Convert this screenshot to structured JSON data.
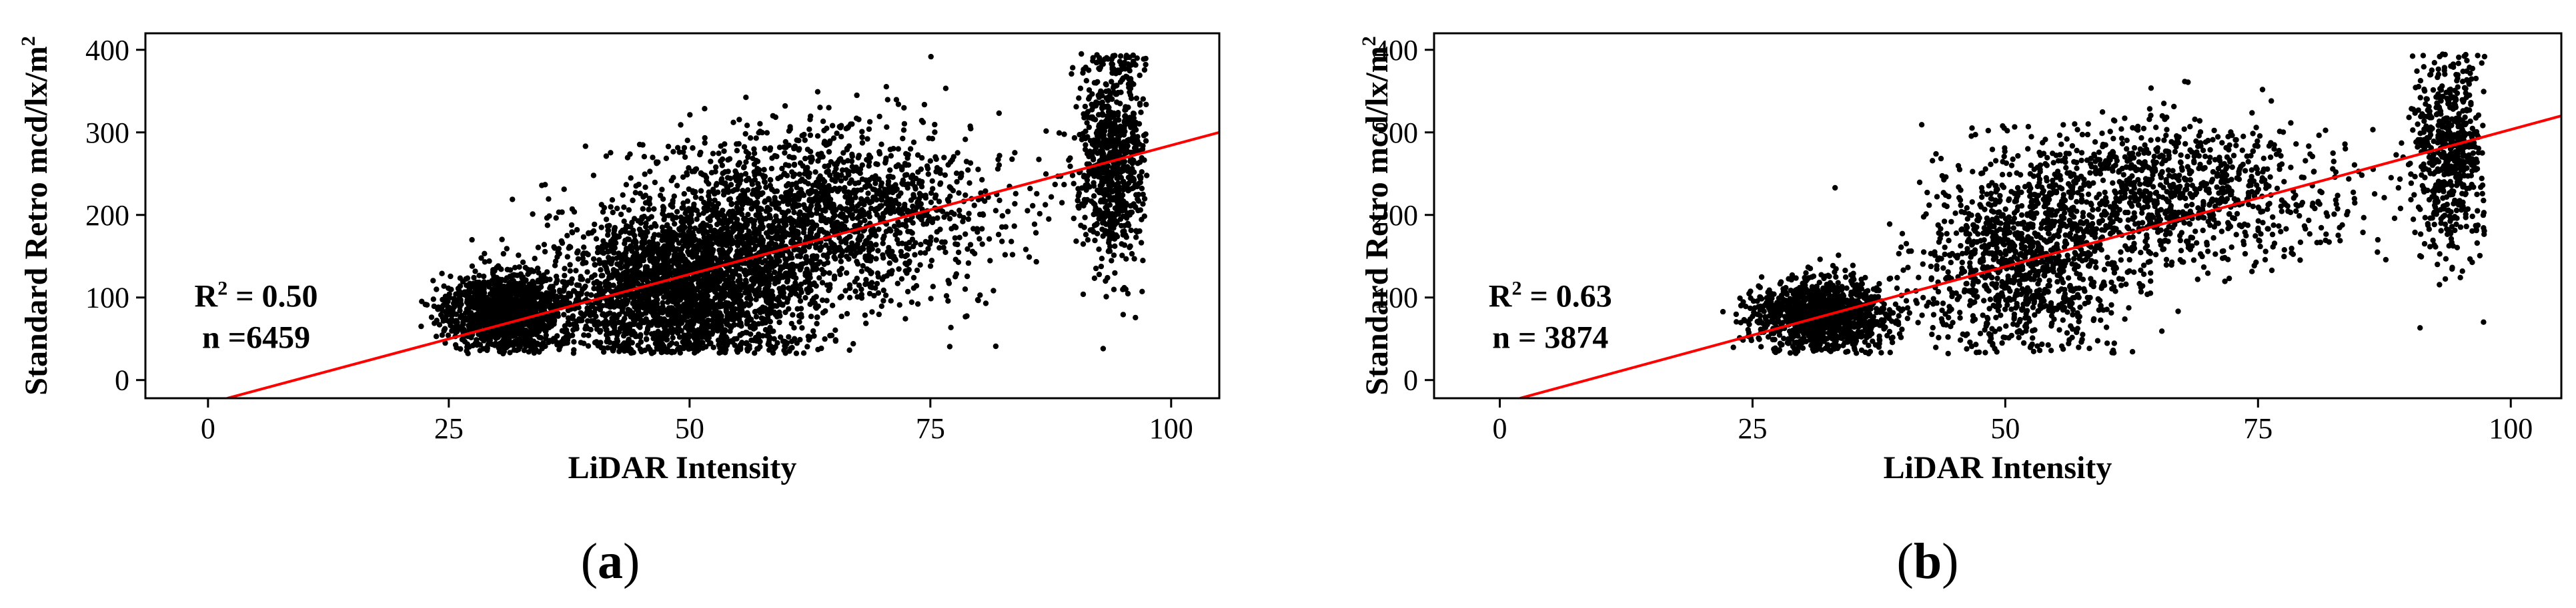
{
  "chart_data": [
    {
      "type": "scatter",
      "panel_label": "a",
      "xlabel": "LiDAR Intensity",
      "ylabel": "Standard Retro mcd/lx/m²",
      "ylabel_main": "Standard Retro mcd/lx/m",
      "ylabel_sup": "2",
      "xlim": [
        -6.5,
        105
      ],
      "ylim": [
        -22,
        420
      ],
      "xticks": [
        0,
        25,
        50,
        75,
        100
      ],
      "yticks": [
        0,
        100,
        200,
        300,
        400
      ],
      "grid": false,
      "regression_line": {
        "x": [
          2,
          105
        ],
        "y": [
          -22,
          300
        ],
        "color": "#ff0000"
      },
      "annotation": {
        "r2_prefix": "R",
        "r2_sup": "2",
        "r2_value": " = 0.50",
        "n_text": "n =6459",
        "x": 5,
        "y_r2": 102,
        "y_n": 52
      },
      "n_points": 6459,
      "point_color": "#000000",
      "point_groups": [
        {
          "x_mean": 31,
          "x_sd": 3.2,
          "y_mean": 82,
          "y_sd": 22,
          "weight": 0.22
        },
        {
          "x_mean": 50,
          "x_sd": 7,
          "y_mean": 115,
          "y_sd": 48,
          "weight": 0.4
        },
        {
          "x_mean": 64,
          "x_sd": 9,
          "y_mean": 205,
          "y_sd": 52,
          "weight": 0.25
        },
        {
          "x_mean": 94,
          "x_sd": 1.8,
          "y_mean": 275,
          "y_sd": 65,
          "weight": 0.13
        }
      ]
    },
    {
      "type": "scatter",
      "panel_label": "b",
      "xlabel": "LiDAR Intensity",
      "ylabel": "Standard Retro mcd/lx/m²",
      "ylabel_main": "Standard Retro mcd/lx/m",
      "ylabel_sup": "2",
      "xlim": [
        -6.5,
        105
      ],
      "ylim": [
        -22,
        420
      ],
      "xticks": [
        0,
        25,
        50,
        75,
        100
      ],
      "yticks": [
        0,
        100,
        200,
        300,
        400
      ],
      "grid": false,
      "regression_line": {
        "x": [
          2,
          105
        ],
        "y": [
          -22,
          320
        ],
        "color": "#ff0000"
      },
      "annotation": {
        "r2_prefix": "R",
        "r2_sup": "2",
        "r2_value": " = 0.63",
        "n_text": "n = 3874",
        "x": 5,
        "y_r2": 102,
        "y_n": 52
      },
      "n_points": 3874,
      "point_color": "#000000",
      "point_groups": [
        {
          "x_mean": 32,
          "x_sd": 3.5,
          "y_mean": 78,
          "y_sd": 22,
          "weight": 0.32
        },
        {
          "x_mean": 52,
          "x_sd": 5,
          "y_mean": 140,
          "y_sd": 55,
          "weight": 0.25
        },
        {
          "x_mean": 66,
          "x_sd": 9,
          "y_mean": 225,
          "y_sd": 45,
          "weight": 0.28
        },
        {
          "x_mean": 94,
          "x_sd": 1.8,
          "y_mean": 280,
          "y_sd": 60,
          "weight": 0.15
        }
      ]
    }
  ],
  "captions": [
    {
      "open": "(",
      "letter": "a",
      "close": ")"
    },
    {
      "open": "(",
      "letter": "b",
      "close": ")"
    }
  ]
}
